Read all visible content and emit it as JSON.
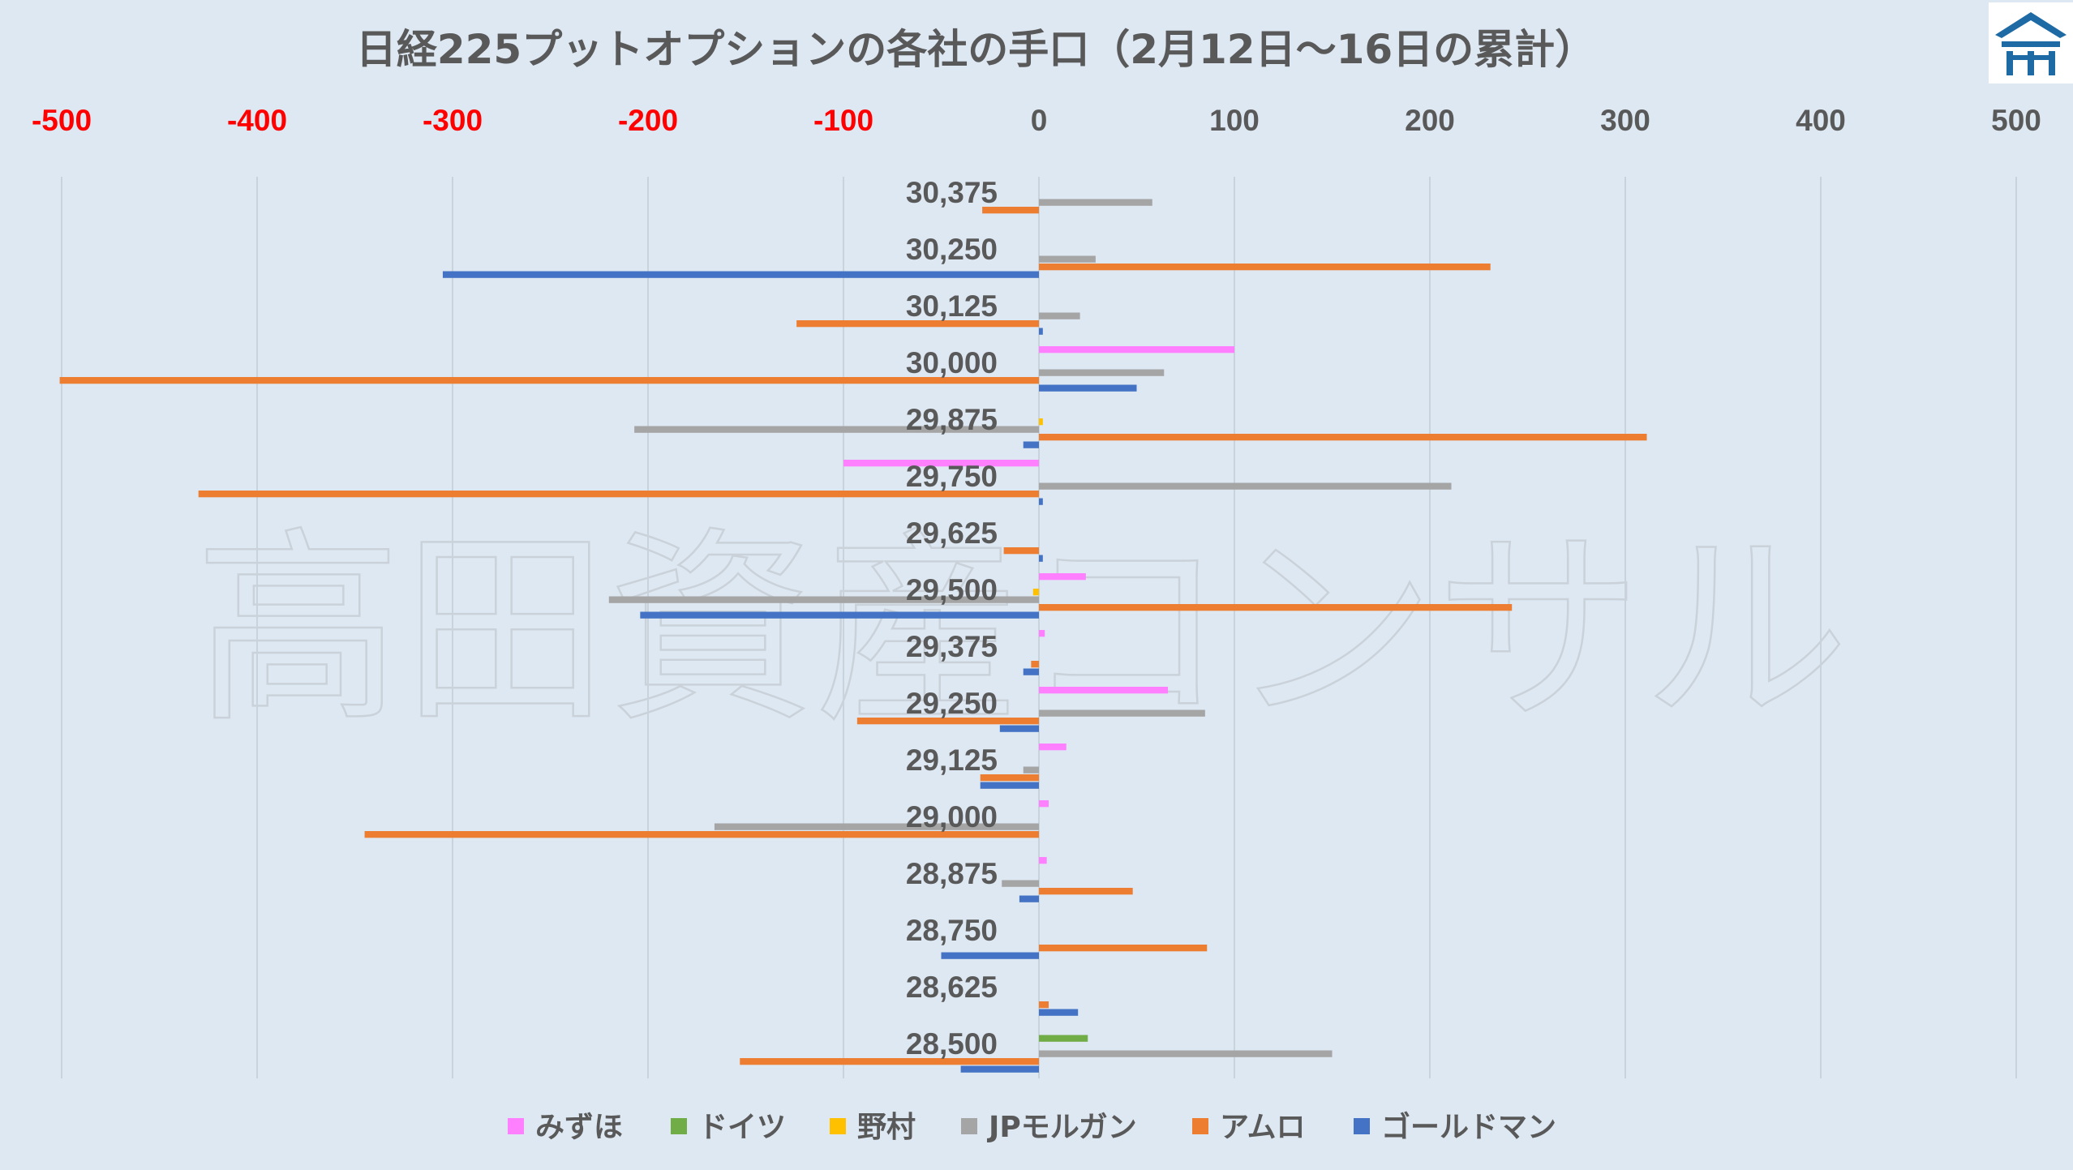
{
  "chart_data": {
    "type": "bar",
    "orientation": "horizontal",
    "title": "日経225プットオプションの各社の手口（2月12日～16日の累計）",
    "watermark": "高田資産コンサル",
    "logo": "logo-icon",
    "xlim": [
      -500,
      500
    ],
    "x_ticks": [
      "-500",
      "-400",
      "-300",
      "-200",
      "-100",
      "0",
      "100",
      "200",
      "300",
      "400",
      "500"
    ],
    "x_tick_values": [
      -500,
      -400,
      -300,
      -200,
      -100,
      0,
      100,
      200,
      300,
      400,
      500
    ],
    "negative_tick_color": "#ff0000",
    "positive_tick_color": "#595959",
    "grid": "vertical",
    "legend_position": "bottom",
    "categories": [
      "30,375",
      "30,250",
      "30,125",
      "30,000",
      "29,875",
      "29,750",
      "29,625",
      "29,500",
      "29,375",
      "29,250",
      "29,125",
      "29,000",
      "28,875",
      "28,750",
      "28,625",
      "28,500"
    ],
    "series": [
      {
        "name": "みずほ",
        "color": "#ff80ff",
        "values": [
          0,
          0,
          0,
          100,
          0,
          -100,
          0,
          24,
          3,
          66,
          14,
          5,
          4,
          0,
          0,
          0
        ]
      },
      {
        "name": "ドイツ",
        "color": "#70ad47",
        "values": [
          0,
          0,
          0,
          0,
          0,
          0,
          0,
          0,
          0,
          0,
          0,
          0,
          0,
          0,
          0,
          25
        ]
      },
      {
        "name": "野村",
        "color": "#ffc000",
        "values": [
          0,
          0,
          0,
          0,
          2,
          0,
          0,
          -3,
          0,
          0,
          0,
          0,
          0,
          0,
          0,
          0
        ]
      },
      {
        "name": "JPモルガン",
        "color": "#a5a5a5",
        "values": [
          58,
          29,
          21,
          64,
          -207,
          211,
          0,
          -220,
          0,
          85,
          -8,
          -166,
          -19,
          0,
          0,
          150
        ]
      },
      {
        "name": "アムロ",
        "color": "#ed7d31",
        "values": [
          -29,
          231,
          -124,
          -501,
          311,
          -430,
          -18,
          242,
          -4,
          -93,
          -30,
          -345,
          48,
          86,
          5,
          -153
        ]
      },
      {
        "name": "ゴールドマン",
        "color": "#4472c4",
        "values": [
          0,
          -305,
          2,
          50,
          -8,
          2,
          2,
          -204,
          -8,
          -20,
          -30,
          0,
          -10,
          -50,
          20,
          -40
        ]
      }
    ]
  }
}
